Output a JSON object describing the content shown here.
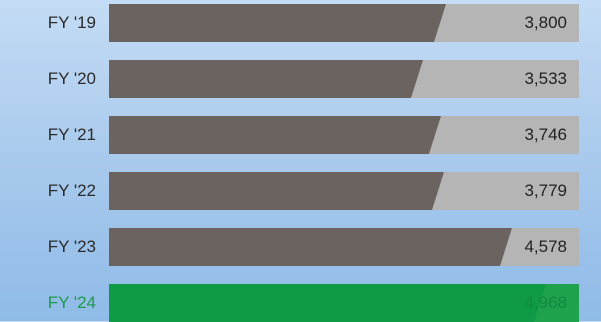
{
  "chart_data": {
    "type": "bar",
    "orientation": "horizontal",
    "categories": [
      "FY '19",
      "FY '20",
      "FY '21",
      "FY '22",
      "FY '23",
      "FY '24"
    ],
    "values": [
      3800,
      3533,
      3746,
      3779,
      4578,
      4968
    ],
    "value_labels": [
      "3,800",
      "3,533",
      "3,746",
      "3,779",
      "4,578",
      "4,968"
    ],
    "highlight_category": "FY '24",
    "xlim": [
      0,
      5500
    ],
    "colors": {
      "bar": "#6b6360",
      "track": "#b5b5b5",
      "highlight": "#0f9a46"
    }
  }
}
